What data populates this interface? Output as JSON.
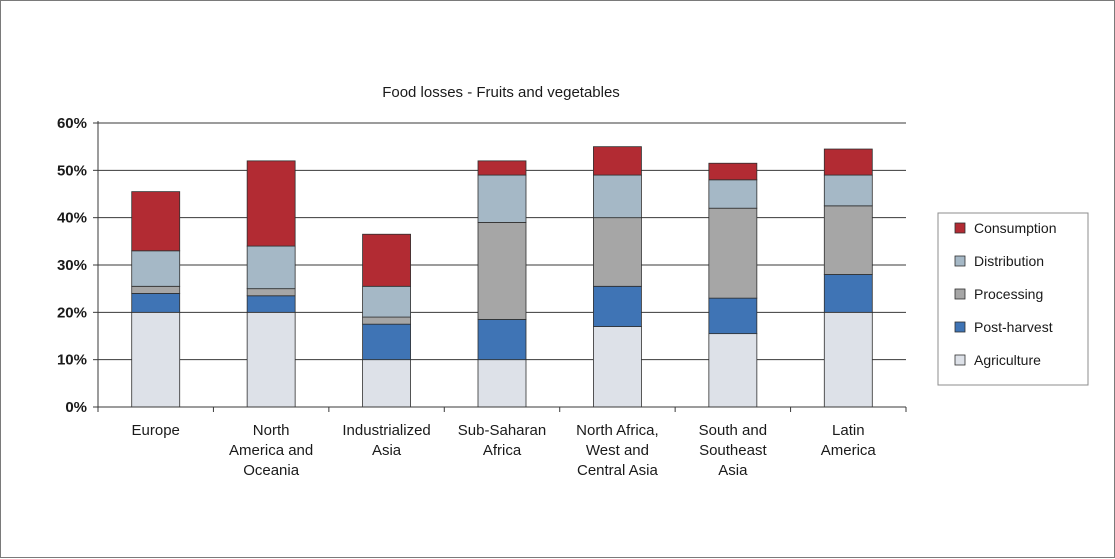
{
  "chart_data": {
    "type": "bar",
    "stacked": true,
    "title": "Food losses - Fruits and vegetables",
    "xlabel": "",
    "ylabel": "",
    "ylim": [
      0,
      60
    ],
    "yticks": [
      "0%",
      "10%",
      "20%",
      "30%",
      "40%",
      "50%",
      "60%"
    ],
    "grid": true,
    "legend_position": "right",
    "categories": [
      [
        "Europe"
      ],
      [
        "North",
        "America and",
        "Oceania"
      ],
      [
        "Industrialized",
        "Asia"
      ],
      [
        "Sub-Saharan",
        "Africa"
      ],
      [
        "North Africa,",
        "West and",
        "Central Asia"
      ],
      [
        "South and",
        "Southeast",
        "Asia"
      ],
      [
        "Latin",
        "America"
      ]
    ],
    "series": [
      {
        "name": "Agriculture",
        "color": "#dde1e8",
        "values": [
          20,
          20,
          10,
          10,
          17,
          15.5,
          20
        ]
      },
      {
        "name": "Post-harvest",
        "color": "#3f74b5",
        "values": [
          4,
          3.5,
          7.5,
          8.5,
          8.5,
          7.5,
          8
        ]
      },
      {
        "name": "Processing",
        "color": "#a6a6a6",
        "values": [
          1.5,
          1.5,
          1.5,
          20.5,
          14.5,
          19,
          14.5
        ]
      },
      {
        "name": "Distribution",
        "color": "#a5b8c6",
        "values": [
          7.5,
          9,
          6.5,
          10,
          9,
          6,
          6.5
        ]
      },
      {
        "name": "Consumption",
        "color": "#b22b33",
        "values": [
          12.5,
          18,
          11,
          3,
          6,
          3.5,
          5.5
        ]
      }
    ]
  }
}
